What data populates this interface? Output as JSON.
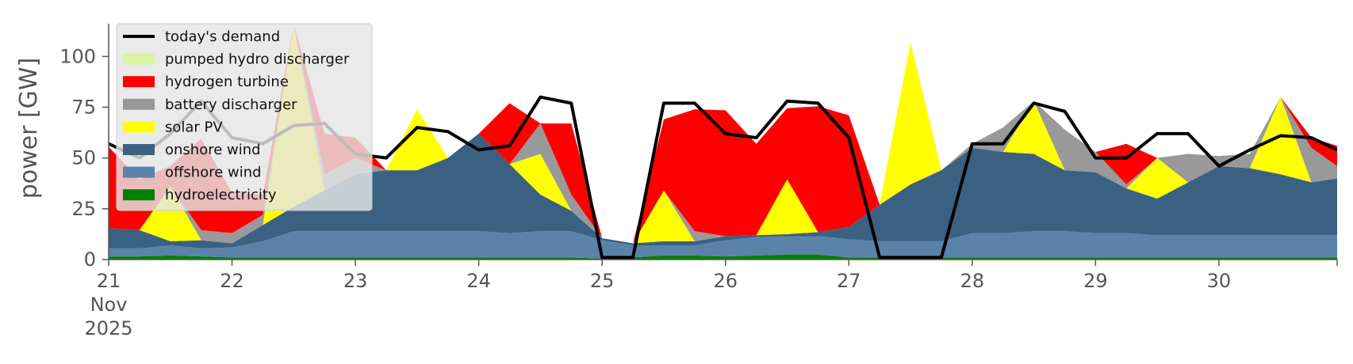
{
  "chart_data": {
    "type": "area",
    "title": "",
    "xlabel": "",
    "ylabel": "power [GW]",
    "ylim": [
      0,
      120
    ],
    "yticks": [
      0,
      25,
      50,
      75,
      100
    ],
    "xlim": [
      "2025-11-21T00:00",
      "2025-11-30T23:00"
    ],
    "xticks": [
      {
        "date": "2025-11-21",
        "label": "21",
        "sub1": "Nov",
        "sub2": "2025"
      },
      {
        "date": "2025-11-22",
        "label": "22"
      },
      {
        "date": "2025-11-23",
        "label": "23"
      },
      {
        "date": "2025-11-24",
        "label": "24"
      },
      {
        "date": "2025-11-25",
        "label": "25"
      },
      {
        "date": "2025-11-26",
        "label": "26"
      },
      {
        "date": "2025-11-27",
        "label": "27"
      },
      {
        "date": "2025-11-28",
        "label": "28"
      },
      {
        "date": "2025-11-29",
        "label": "29"
      },
      {
        "date": "2025-11-30",
        "label": "30"
      }
    ],
    "grid": false,
    "legend_position": "top-left",
    "legend": [
      {
        "name": "today's demand",
        "kind": "line",
        "color": "#000000"
      },
      {
        "name": "pumped hydro discharger",
        "kind": "patch",
        "color": "#d9f5a0"
      },
      {
        "name": "hydrogen turbine",
        "kind": "patch",
        "color": "#ff0000"
      },
      {
        "name": "battery discharger",
        "kind": "patch",
        "color": "#999999"
      },
      {
        "name": "solar PV",
        "kind": "patch",
        "color": "#ffff00"
      },
      {
        "name": "onshore wind",
        "kind": "patch",
        "color": "#3a6182"
      },
      {
        "name": "offshore wind",
        "kind": "patch",
        "color": "#5b82a8"
      },
      {
        "name": "hydroelectricity",
        "kind": "patch",
        "color": "#008000"
      }
    ],
    "x": [
      "2025-11-21T00:00",
      "2025-11-21T06:00",
      "2025-11-21T12:00",
      "2025-11-21T18:00",
      "2025-11-22T00:00",
      "2025-11-22T06:00",
      "2025-11-22T12:00",
      "2025-11-22T18:00",
      "2025-11-23T00:00",
      "2025-11-23T06:00",
      "2025-11-23T12:00",
      "2025-11-23T18:00",
      "2025-11-24T00:00",
      "2025-11-24T06:00",
      "2025-11-24T12:00",
      "2025-11-24T18:00",
      "2025-11-25T00:00",
      "2025-11-25T06:00",
      "2025-11-25T12:00",
      "2025-11-25T18:00",
      "2025-11-26T00:00",
      "2025-11-26T06:00",
      "2025-11-26T12:00",
      "2025-11-26T18:00",
      "2025-11-27T00:00",
      "2025-11-27T06:00",
      "2025-11-27T12:00",
      "2025-11-27T18:00",
      "2025-11-28T00:00",
      "2025-11-28T06:00",
      "2025-11-28T12:00",
      "2025-11-28T18:00",
      "2025-11-29T00:00",
      "2025-11-29T06:00",
      "2025-11-29T12:00",
      "2025-11-29T18:00",
      "2025-11-30T00:00",
      "2025-11-30T06:00",
      "2025-11-30T12:00",
      "2025-11-30T18:00",
      "2025-11-30T23:00"
    ],
    "series": [
      {
        "name": "hydroelectricity",
        "color": "#008000",
        "values": [
          1.5,
          1.5,
          2,
          1.5,
          1,
          1,
          1,
          1,
          1,
          1,
          1,
          1,
          1,
          1,
          1,
          1,
          0.5,
          1,
          2,
          2,
          1.5,
          2,
          2.5,
          2.5,
          1,
          1,
          1,
          1,
          1,
          1,
          1,
          1,
          1,
          1,
          1,
          1,
          1,
          1,
          1,
          1,
          1
        ]
      },
      {
        "name": "offshore wind",
        "color": "#5b82a8",
        "values": [
          4,
          4,
          5,
          4,
          5,
          8,
          13,
          13,
          13,
          13,
          13,
          13,
          13,
          12,
          13,
          13,
          9,
          6,
          5,
          5,
          8,
          9,
          9,
          9,
          9,
          8,
          8,
          8,
          12,
          12,
          13,
          13,
          12,
          12,
          11,
          11,
          11,
          11,
          11,
          11,
          11
        ]
      },
      {
        "name": "onshore wind",
        "color": "#3a6182",
        "values": [
          10,
          9,
          2,
          4,
          2,
          8,
          12,
          20,
          28,
          30,
          30,
          36,
          48,
          34,
          18,
          10,
          1,
          1,
          2,
          2,
          2,
          1,
          1,
          2,
          6,
          18,
          28,
          35,
          42,
          40,
          38,
          30,
          30,
          22,
          18,
          26,
          34,
          33,
          30,
          26,
          28
        ]
      },
      {
        "name": "solar PV",
        "color": "#ffff00",
        "values": [
          0,
          0,
          27,
          0,
          0,
          0,
          90,
          0,
          0,
          0,
          30,
          0,
          0,
          0,
          20,
          0,
          0,
          0,
          25,
          0,
          0,
          0,
          27,
          0,
          0,
          0,
          70,
          0,
          0,
          0,
          26,
          0,
          0,
          0,
          20,
          0,
          0,
          0,
          38,
          0,
          0
        ]
      },
      {
        "name": "battery discharger",
        "color": "#999999",
        "values": [
          0,
          0,
          0,
          5,
          5,
          5,
          0,
          8,
          8,
          0,
          0,
          0,
          0,
          0,
          15,
          8,
          0,
          0,
          0,
          5,
          0,
          0,
          0,
          0,
          0,
          0,
          0,
          0,
          2,
          12,
          0,
          20,
          10,
          2,
          0,
          14,
          5,
          7,
          0,
          17,
          6
        ]
      },
      {
        "name": "hydrogen turbine",
        "color": "#ff0000",
        "values": [
          40,
          25,
          10,
          45,
          20,
          10,
          0,
          20,
          10,
          0,
          0,
          0,
          0,
          30,
          0,
          35,
          0,
          0,
          35,
          60,
          62,
          45,
          35,
          62,
          55,
          0,
          0,
          0,
          0,
          0,
          0,
          0,
          0,
          20,
          0,
          0,
          0,
          0,
          0,
          5,
          10
        ]
      },
      {
        "name": "pumped hydro discharger",
        "color": "#d9f5a0",
        "values": [
          0,
          0,
          0,
          0,
          0,
          0,
          0,
          0,
          0,
          0,
          0,
          0,
          0,
          0,
          0,
          0,
          0,
          0,
          0,
          0,
          0,
          0,
          0,
          0,
          0,
          0,
          0,
          0,
          0,
          0,
          0,
          0,
          0,
          0,
          0,
          0,
          0,
          0,
          0,
          0,
          0
        ]
      }
    ],
    "demand": {
      "name": "today's demand",
      "color": "#000000",
      "values": [
        57,
        50,
        62,
        78,
        60,
        57,
        66,
        67,
        52,
        50,
        65,
        63,
        54,
        56,
        80,
        77,
        1,
        1,
        77,
        77,
        62,
        60,
        78,
        77,
        60,
        1,
        1,
        1,
        57,
        57,
        77,
        73,
        50,
        50,
        62,
        62,
        46,
        54,
        61,
        60,
        54
      ]
    }
  }
}
